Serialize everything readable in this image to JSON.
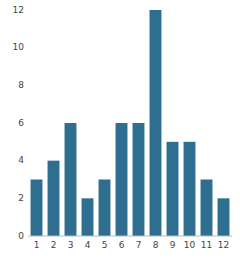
{
  "chart_data": {
    "type": "bar",
    "categories": [
      "1",
      "2",
      "3",
      "4",
      "5",
      "6",
      "7",
      "8",
      "9",
      "10",
      "11",
      "12"
    ],
    "values": [
      3,
      4,
      6,
      2,
      3,
      6,
      6,
      12,
      5,
      5,
      3,
      2
    ],
    "color": "#2e6e8e",
    "ylim": [
      0,
      12
    ],
    "yticks": [
      0,
      2,
      4,
      6,
      8,
      10,
      12
    ],
    "grid": false
  }
}
